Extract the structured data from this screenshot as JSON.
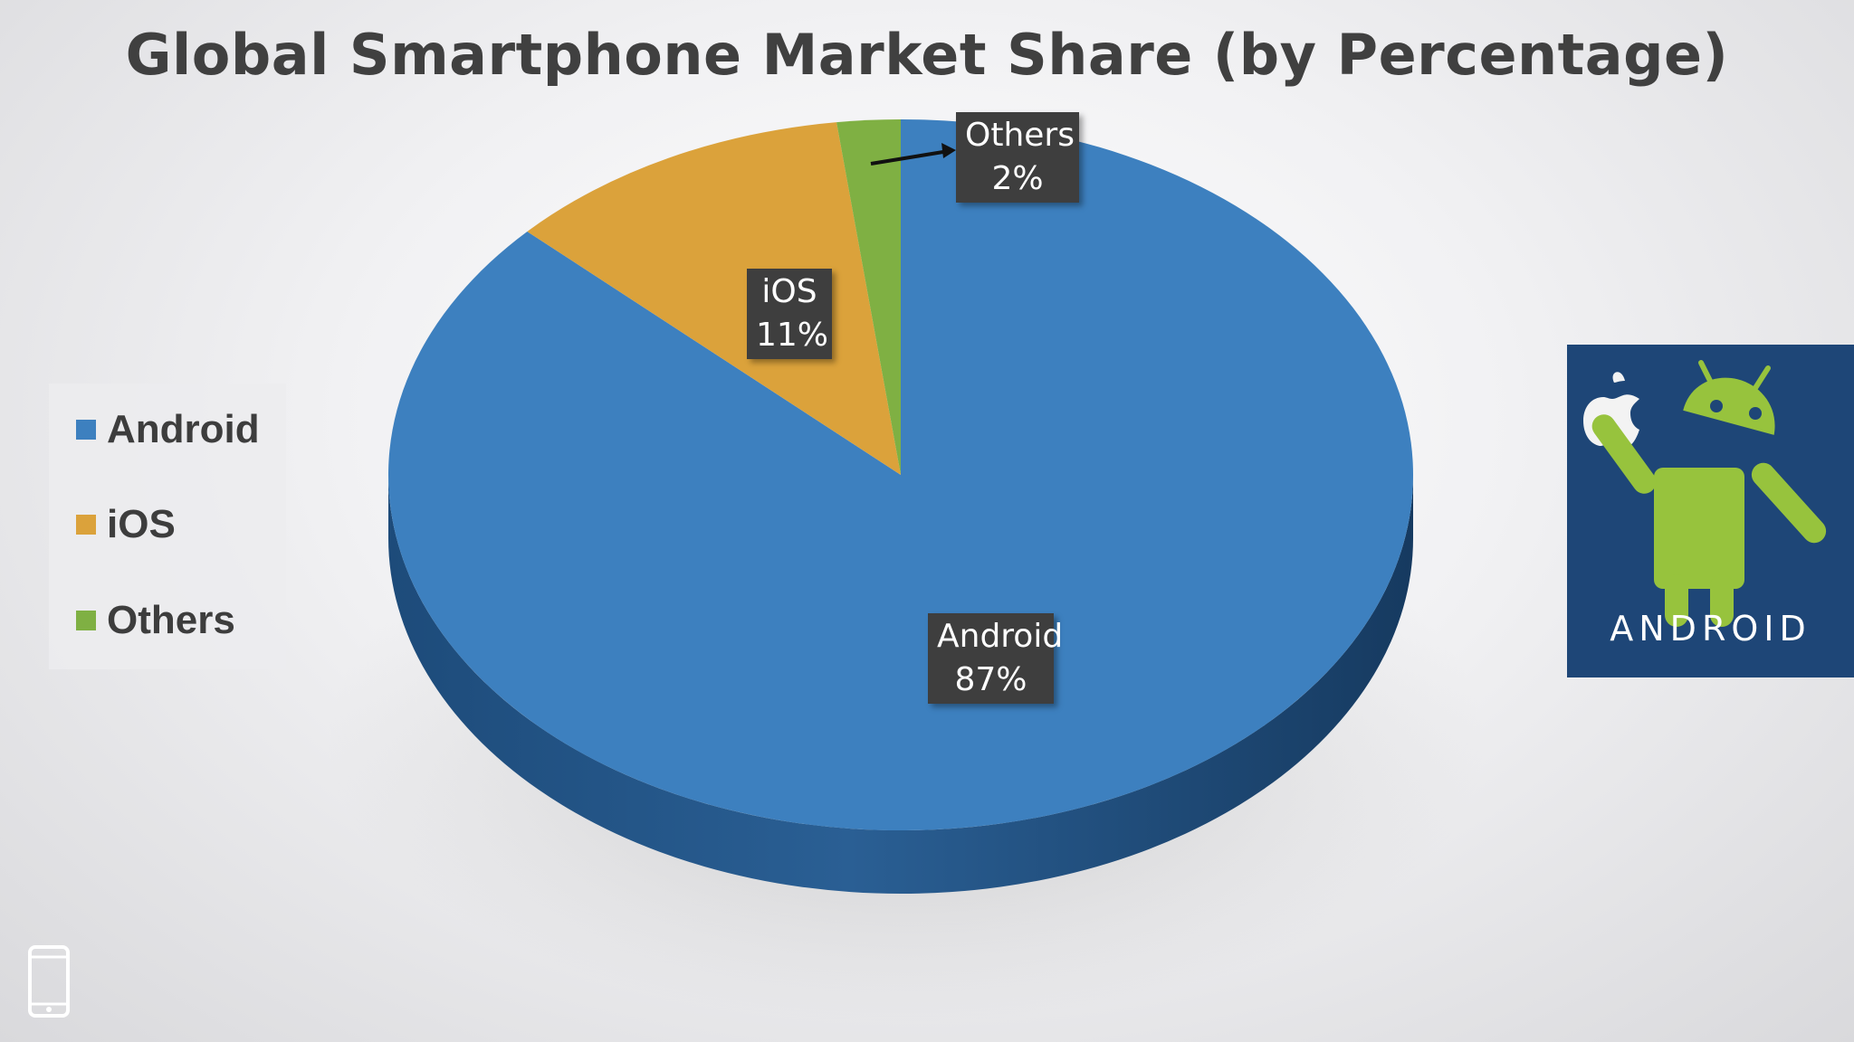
{
  "chart_data": {
    "type": "pie",
    "title": "Global Smartphone Market Share (by Percentage)",
    "categories": [
      "Android",
      "iOS",
      "Others"
    ],
    "values": [
      87,
      11,
      2
    ],
    "unit": "%",
    "data_labels": [
      {
        "category": "Android",
        "value_text": "87%"
      },
      {
        "category": "iOS",
        "value_text": "11%"
      },
      {
        "category": "Others",
        "value_text": "2%"
      }
    ],
    "legend": {
      "position": "left",
      "entries": [
        "Android",
        "iOS",
        "Others"
      ]
    },
    "colors": {
      "Android": "#3d80bf",
      "iOS": "#dba23b",
      "Others": "#7fb043"
    },
    "style": "3d"
  },
  "logo": {
    "text": "ANDROID",
    "icons": [
      "apple-icon",
      "android-robot-icon"
    ]
  },
  "corner_icon": "smartphone-icon"
}
